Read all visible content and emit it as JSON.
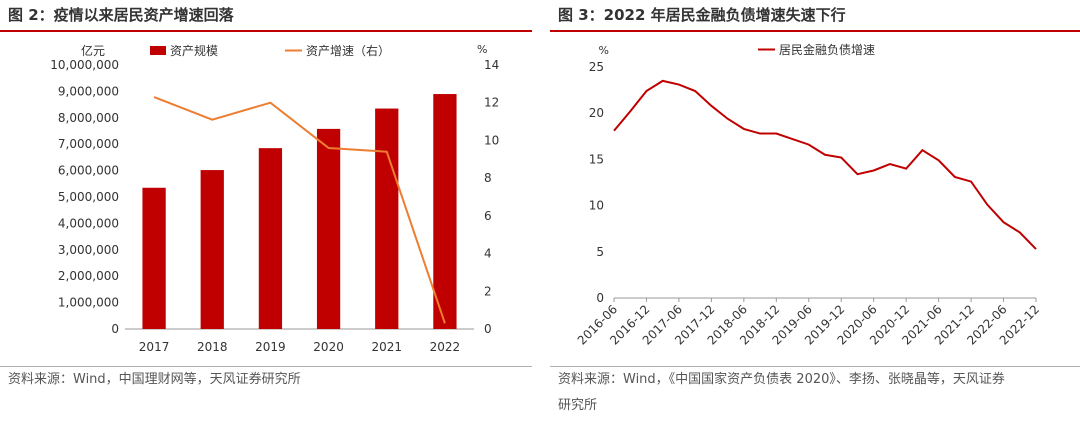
{
  "left": {
    "title": "图 2：疫情以来居民资产增速回落",
    "source": "资料来源：Wind，中国理财网等，天风证券研究所"
  },
  "right": {
    "title": "图 3：2022 年居民金融负债增速失速下行",
    "source_line1": "资料来源：Wind，《中国国家资产负债表 2020》、李扬、张晓晶等，天风证券",
    "source_line2": "研究所"
  },
  "colors": {
    "bar": "#c00000",
    "growth_line": "#ed7d31",
    "debt_line": "#c00000",
    "rule": "#c00000"
  },
  "chart_data": [
    {
      "type": "bar",
      "title": "",
      "categories": [
        "2017",
        "2018",
        "2019",
        "2020",
        "2021",
        "2022"
      ],
      "left_unit": "亿元",
      "right_unit": "%",
      "ylim": [
        0,
        10000000
      ],
      "yticks": [
        "0",
        "1,000,000",
        "2,000,000",
        "3,000,000",
        "4,000,000",
        "5,000,000",
        "6,000,000",
        "7,000,000",
        "8,000,000",
        "9,000,000",
        "10,000,000"
      ],
      "y2lim": [
        0,
        14
      ],
      "y2ticks": [
        "0",
        "2",
        "4",
        "6",
        "8",
        "10",
        "12",
        "14"
      ],
      "legend_placement": "top",
      "series": [
        {
          "name": "资产规模",
          "kind": "bar",
          "axis": "left",
          "values": [
            5350000,
            6020000,
            6850000,
            7580000,
            8350000,
            8900000
          ]
        },
        {
          "name": "资产增速（右）",
          "kind": "line",
          "axis": "right",
          "values": [
            12.3,
            11.1,
            12.0,
            9.6,
            9.4,
            0.3
          ]
        }
      ]
    },
    {
      "type": "line",
      "title": "",
      "y_unit": "%",
      "ylim": [
        0,
        25
      ],
      "yticks": [
        "0",
        "5",
        "10",
        "15",
        "20",
        "25"
      ],
      "xticks": [
        "2016-06",
        "2016-12",
        "2017-06",
        "2017-12",
        "2018-06",
        "2018-12",
        "2019-06",
        "2019-12",
        "2020-06",
        "2020-12",
        "2021-06",
        "2021-12",
        "2022-06",
        "2022-12"
      ],
      "legend_placement": "top",
      "series": [
        {
          "name": "居民金融负债增速",
          "x": [
            "2016-06",
            "2016-09",
            "2016-12",
            "2017-03",
            "2017-06",
            "2017-09",
            "2017-12",
            "2018-03",
            "2018-06",
            "2018-09",
            "2018-12",
            "2019-03",
            "2019-06",
            "2019-09",
            "2019-12",
            "2020-03",
            "2020-06",
            "2020-09",
            "2020-12",
            "2021-03",
            "2021-06",
            "2021-09",
            "2021-12",
            "2022-03",
            "2022-06",
            "2022-09",
            "2022-12"
          ],
          "values": [
            18.1,
            20.2,
            22.4,
            23.5,
            23.1,
            22.4,
            20.8,
            19.4,
            18.3,
            17.8,
            17.8,
            17.2,
            16.6,
            15.5,
            15.2,
            13.4,
            13.8,
            14.5,
            14.0,
            16.0,
            14.9,
            13.1,
            12.6,
            10.1,
            8.2,
            7.1,
            5.3
          ]
        }
      ]
    }
  ]
}
